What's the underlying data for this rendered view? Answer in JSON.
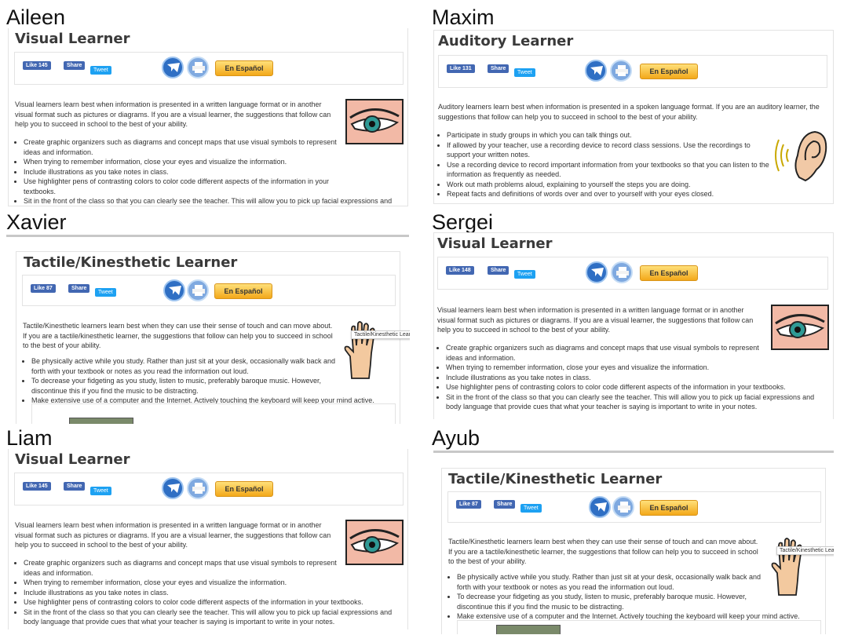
{
  "people": [
    "Aileen",
    "Maxim",
    "Xavier",
    "Sergei",
    "Liam",
    "Ayub"
  ],
  "ui": {
    "share_label": "Share",
    "tweet_label": "Tweet",
    "espanol_label": "En Español"
  },
  "likes": {
    "aileen": "Like 145",
    "maxim": "Like 131",
    "xavier": "Like 87",
    "sergei": "Like 148",
    "liam": "Like 145",
    "ayub": "Like 87"
  },
  "visual": {
    "title": "Visual Learner",
    "intro": "Visual learners learn best when information is presented in a written language format or in another visual format such as pictures or diagrams. If you are a visual learner, the suggestions that follow can help you to succeed in school to the best of your ability.",
    "tips": [
      "Create graphic organizers such as diagrams and concept maps that use visual symbols to represent ideas and information.",
      "When trying to remember information, close your eyes and visualize the information.",
      "Include illustrations as you take notes in class.",
      "Use highlighter pens of contrasting colors to color code different aspects of the information in your textbooks.",
      "Sit in the front of the class so that you can clearly see the teacher. This will allow you to pick up facial expressions and body language that provide cues that what your teacher is saying is important to write in your notes."
    ]
  },
  "auditory": {
    "title": "Auditory Learner",
    "intro": "Auditory learners learn best when information is presented in a spoken language format. If you are an auditory learner, the suggestions that follow can help you to succeed in school to the best of your ability.",
    "tips": [
      "Participate in study groups in which you can talk things out.",
      "If allowed by your teacher, use a recording device to record class sessions. Use the recordings to support your written notes.",
      "Use a recording device to record important information from your textbooks so that you can listen to the information as frequently as needed.",
      "Work out math problems aloud, explaining to yourself the steps you are doing.",
      "Repeat facts and definitions of words over and over to yourself with your eyes closed."
    ]
  },
  "tactile": {
    "title": "Tactile/Kinesthetic Learner",
    "intro": "Tactile/Kinesthetic learners learn best when they can use their sense of touch and can move about. If you are a tactile/kinesthetic learner, the suggestions that follow can help you to succeed in school to the best of your ability.",
    "tips": [
      "Be physically active while you study. Rather than just sit at your desk, occasionally walk back and forth with your textbook or notes as you read the information out loud.",
      "To decrease your fidgeting as you study, listen to music, preferably baroque music. However, discontinue this if you find the music to be distracting.",
      "Make extensive use of a computer and the Internet. Actively touching the keyboard will keep your mind active."
    ],
    "tooltip": "Tactile/Kinesthetic Learr"
  },
  "icons": {
    "mail": "mail-icon",
    "print": "printer-icon",
    "eye": "eye-illustration",
    "ear": "ear-illustration",
    "hand": "hand-illustration",
    "book": "book-image"
  },
  "colors": {
    "facebook": "#4267b2",
    "twitter": "#1da1f2",
    "espanol_top": "#ffe07a",
    "espanol_bottom": "#f3a81a",
    "mail_circle": "#2f6fc4",
    "print_circle": "#7fa9e0"
  }
}
